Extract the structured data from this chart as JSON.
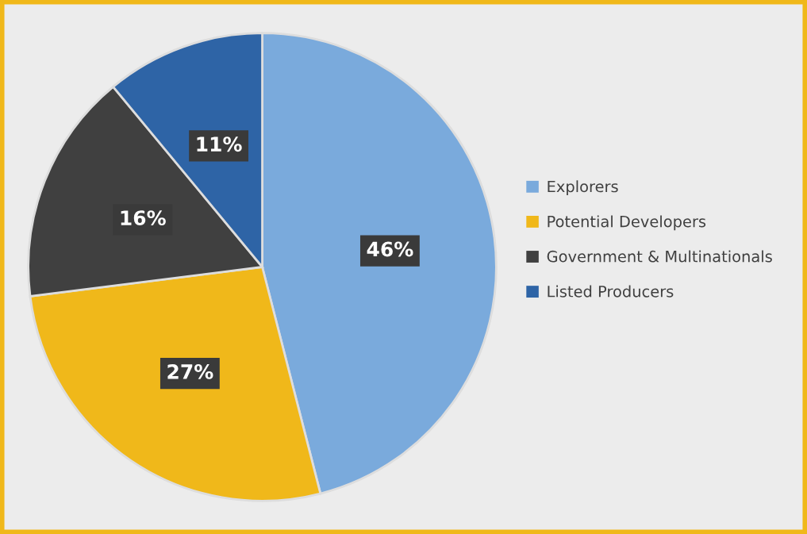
{
  "chart_data": {
    "type": "pie",
    "categories": [
      "Explorers",
      "Potential Developers",
      "Government & Multinationals",
      "Listed Producers"
    ],
    "values": [
      46,
      27,
      16,
      11
    ],
    "colors": [
      "#7aaadc",
      "#f0b81a",
      "#404040",
      "#2e64a6"
    ],
    "value_labels": [
      "46%",
      "27%",
      "16%",
      "11%"
    ],
    "legend": "right"
  }
}
